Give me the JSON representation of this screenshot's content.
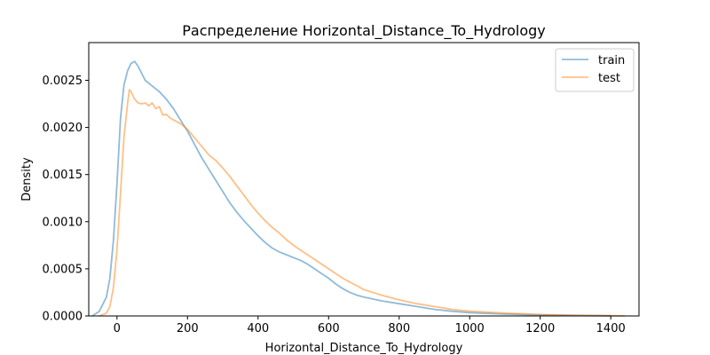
{
  "chart_data": {
    "type": "line",
    "title": "Распределение Horizontal_Distance_To_Hydrology",
    "xlabel": "Horizontal_Distance_To_Hydrology",
    "ylabel": "Density",
    "xlim": [
      -80,
      1480
    ],
    "ylim": [
      0,
      0.0029
    ],
    "x_ticks": [
      0,
      200,
      400,
      600,
      800,
      1000,
      1200,
      1400
    ],
    "y_ticks": [
      0,
      0.0005,
      0.001,
      0.0015,
      0.002,
      0.0025
    ],
    "y_tick_labels": [
      "0.0000",
      "0.0005",
      "0.0010",
      "0.0015",
      "0.0020",
      "0.0025"
    ],
    "grid": false,
    "legend": "top-right",
    "series": [
      {
        "name": "train",
        "color": "#1f77b4",
        "x": [
          -70,
          -50,
          -30,
          -20,
          -10,
          0,
          10,
          20,
          30,
          40,
          50,
          60,
          80,
          100,
          120,
          140,
          160,
          180,
          200,
          220,
          240,
          260,
          280,
          300,
          320,
          340,
          360,
          380,
          400,
          420,
          440,
          460,
          480,
          500,
          520,
          540,
          560,
          580,
          600,
          620,
          640,
          660,
          680,
          700,
          750,
          800,
          850,
          900,
          950,
          1000,
          1100,
          1200,
          1300,
          1400
        ],
        "y": [
          0.0,
          5e-05,
          0.0002,
          0.0004,
          0.0008,
          0.0014,
          0.0021,
          0.00245,
          0.0026,
          0.00268,
          0.0027,
          0.00265,
          0.0025,
          0.00244,
          0.00238,
          0.0023,
          0.0022,
          0.00208,
          0.00196,
          0.00182,
          0.00168,
          0.00156,
          0.00144,
          0.00132,
          0.0012,
          0.0011,
          0.00101,
          0.00093,
          0.00085,
          0.00078,
          0.00072,
          0.00068,
          0.00065,
          0.00062,
          0.00059,
          0.00055,
          0.0005,
          0.00045,
          0.0004,
          0.00034,
          0.00029,
          0.00025,
          0.00022,
          0.0002,
          0.00016,
          0.00013,
          0.0001,
          7e-05,
          5e-05,
          3.5e-05,
          2e-05,
          1e-05,
          5e-06,
          2e-06
        ]
      },
      {
        "name": "test",
        "color": "#ff7f0e",
        "x": [
          -50,
          -30,
          -20,
          -10,
          0,
          10,
          20,
          30,
          35,
          40,
          50,
          60,
          70,
          80,
          90,
          100,
          110,
          120,
          130,
          140,
          150,
          160,
          180,
          200,
          220,
          240,
          260,
          280,
          300,
          320,
          340,
          360,
          380,
          400,
          420,
          440,
          460,
          480,
          500,
          520,
          540,
          560,
          580,
          600,
          620,
          640,
          660,
          680,
          700,
          750,
          800,
          850,
          900,
          950,
          1000,
          1100,
          1200,
          1300,
          1400,
          1440
        ],
        "y": [
          0.0,
          3e-05,
          0.0001,
          0.0003,
          0.0007,
          0.0013,
          0.0019,
          0.00225,
          0.0024,
          0.00238,
          0.0023,
          0.00226,
          0.00225,
          0.00226,
          0.00223,
          0.00226,
          0.0022,
          0.00222,
          0.00213,
          0.00214,
          0.0021,
          0.00208,
          0.00204,
          0.00198,
          0.00189,
          0.0018,
          0.00171,
          0.00165,
          0.00157,
          0.00148,
          0.00138,
          0.00128,
          0.00118,
          0.00109,
          0.00101,
          0.00094,
          0.00088,
          0.00081,
          0.00075,
          0.0007,
          0.00065,
          0.0006,
          0.00055,
          0.0005,
          0.00045,
          0.0004,
          0.00036,
          0.00032,
          0.00028,
          0.00022,
          0.00017,
          0.00013,
          0.0001,
          7e-05,
          5e-05,
          3e-05,
          1.5e-05,
          8e-06,
          3e-06,
          0.0
        ]
      }
    ]
  }
}
